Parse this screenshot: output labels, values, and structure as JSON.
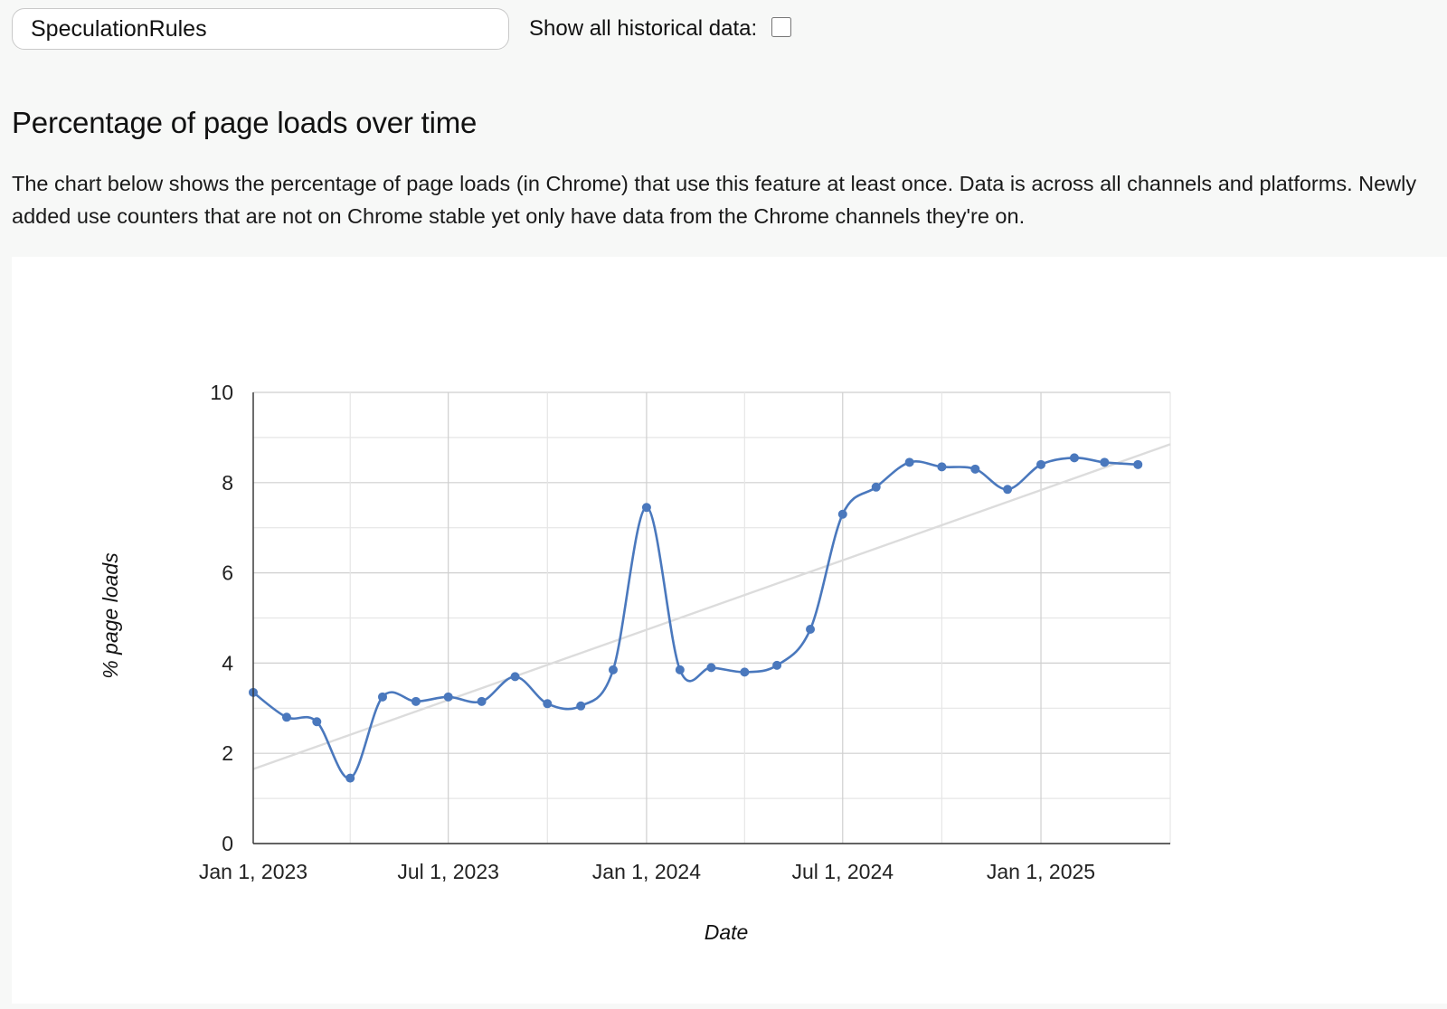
{
  "search": {
    "value": "SpeculationRules"
  },
  "historical": {
    "label": "Show all historical data:",
    "checked": false
  },
  "section": {
    "heading": "Percentage of page loads over time",
    "description": "The chart below shows the percentage of page loads (in Chrome) that use this feature at least once. Data is across all channels and platforms. Newly added use counters that are not on Chrome stable yet only have data from the Chrome channels they're on."
  },
  "colors": {
    "series": "#4a78bd",
    "trendline": "#dcdcdc",
    "grid": "#e6e6e6",
    "grid_major": "#cfcfcf",
    "axis": "#333333"
  },
  "chart_data": {
    "type": "line",
    "xlabel": "Date",
    "ylabel": "% page loads",
    "ylim": [
      0,
      10
    ],
    "yticks": [
      "0",
      "2",
      "4",
      "6",
      "8",
      "10"
    ],
    "xticks": [
      "Jan 1, 2023",
      "Jul 1, 2023",
      "Jan 1, 2024",
      "Jul 1, 2024",
      "Jan 1, 2025"
    ],
    "xlim": [
      "2023-01-01",
      "2025-05-01"
    ],
    "grid": true,
    "smooth": true,
    "series": [
      {
        "x": [
          "2023-01-01",
          "2023-02-01",
          "2023-03-01",
          "2023-04-01",
          "2023-05-01",
          "2023-06-01",
          "2023-07-01",
          "2023-08-01",
          "2023-09-01",
          "2023-10-01",
          "2023-11-01",
          "2023-12-01",
          "2024-01-01",
          "2024-02-01",
          "2024-03-01",
          "2024-04-01",
          "2024-05-01",
          "2024-06-01",
          "2024-07-01",
          "2024-08-01",
          "2024-09-01",
          "2024-10-01",
          "2024-11-01",
          "2024-12-01",
          "2025-01-01",
          "2025-02-01",
          "2025-03-01",
          "2025-04-01"
        ],
        "y": [
          3.35,
          2.8,
          2.7,
          1.45,
          3.25,
          3.15,
          3.25,
          3.15,
          3.7,
          3.1,
          3.05,
          3.85,
          7.45,
          3.85,
          3.9,
          3.8,
          3.95,
          4.75,
          7.3,
          7.9,
          8.45,
          8.35,
          8.3,
          7.85,
          8.4,
          8.55,
          8.45,
          8.4
        ]
      }
    ],
    "trendline": {
      "x": [
        "2023-01-01",
        "2025-05-01"
      ],
      "y": [
        1.65,
        8.85
      ]
    }
  }
}
